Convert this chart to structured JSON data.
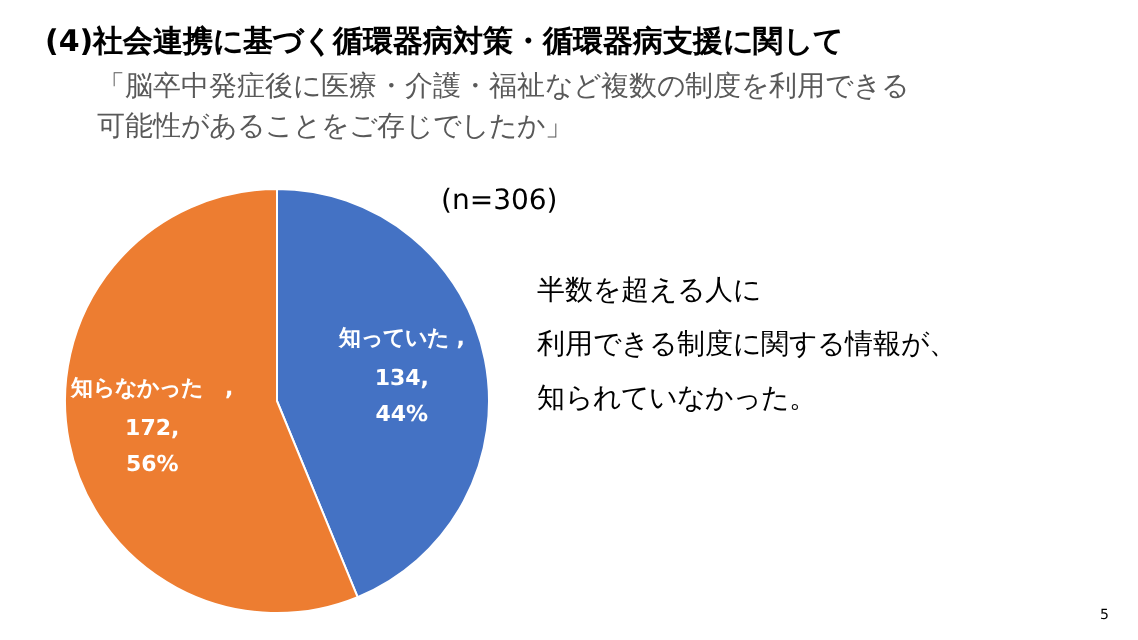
{
  "chart_data": {
    "type": "pie",
    "title": "(4)社会連携に基づく循環器病対策・循環器病支援に関して",
    "subtitle": "「脳卒中発症後に医療・介護・福祉など複数の制度を利用できる可能性があることをご存じでしたか」",
    "categories": [
      "知っていた",
      "知らなかった"
    ],
    "values": [
      134,
      172
    ],
    "colors": [
      "#4472c4",
      "#ed7d31"
    ],
    "value_labels": [
      " ,\n134,\n44%",
      "　,\n172,\n56%"
    ],
    "annotations": [
      "(n=306)",
      "半数を超える人に",
      "利用できる制度に関する情報が、",
      "知られていなかった。",
      "5"
    ]
  }
}
